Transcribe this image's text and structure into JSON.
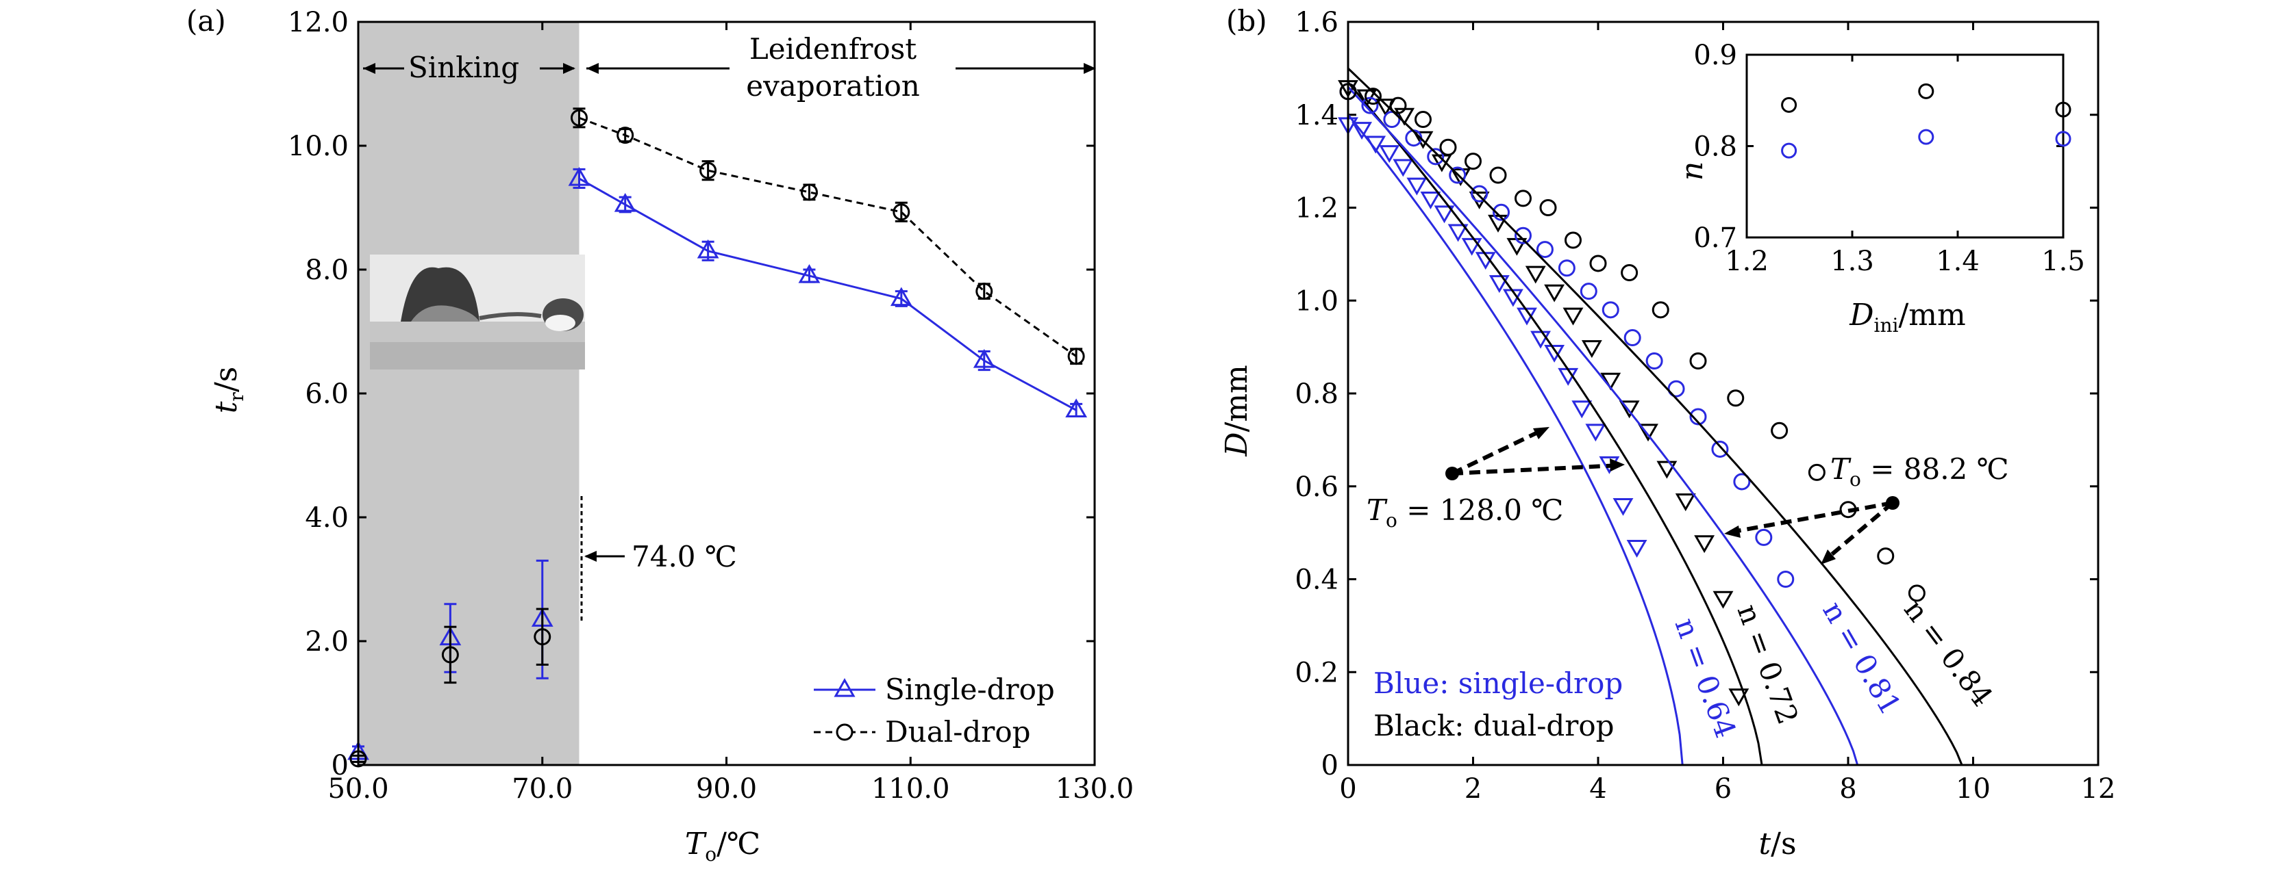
{
  "chart_data": [
    {
      "panel": "(a)",
      "type": "line",
      "xlabel": "T_o/℃",
      "ylabel": "t_r/s",
      "xlim": [
        50,
        130
      ],
      "ylim": [
        0,
        12
      ],
      "xticks": [
        "50.0",
        "70.0",
        "90.0",
        "110.0",
        "130.0"
      ],
      "yticks": [
        "0",
        "2.0",
        "4.0",
        "6.0",
        "8.0",
        "10.0",
        "12.0"
      ],
      "shaded_region": {
        "x": [
          50,
          74
        ],
        "color": "#c8c8c8"
      },
      "region_labels": [
        "Sinking",
        "Leidenfrost",
        "evaporation"
      ],
      "threshold_label": "74.0 ℃",
      "series": [
        {
          "name": "Single-drop",
          "color": "#2a2ae0",
          "marker": "triangle",
          "line": "solid",
          "x": [
            74,
            79,
            88,
            99,
            109,
            118,
            128
          ],
          "y": [
            9.47,
            9.05,
            8.3,
            7.9,
            7.53,
            6.53,
            5.73
          ],
          "err": [
            0.15,
            0.12,
            0.15,
            0.1,
            0.12,
            0.15,
            0.1
          ]
        },
        {
          "name": "Dual-drop",
          "color": "#000000",
          "marker": "circle",
          "line": "dashed",
          "x": [
            74,
            79,
            88,
            99,
            109,
            118,
            128
          ],
          "y": [
            10.45,
            10.17,
            9.6,
            9.25,
            8.93,
            7.65,
            6.6
          ],
          "err": [
            0.15,
            0.1,
            0.15,
            0.12,
            0.15,
            0.12,
            0.12
          ]
        }
      ],
      "sinking_points": [
        {
          "series": "Single-drop",
          "x": [
            50,
            60,
            70
          ],
          "y": [
            0.2,
            2.05,
            2.35
          ],
          "err": [
            0.1,
            0.55,
            0.95
          ]
        },
        {
          "series": "Dual-drop",
          "x": [
            50,
            60,
            70
          ],
          "y": [
            0.1,
            1.78,
            2.07
          ],
          "err": [
            0.05,
            0.45,
            0.45
          ]
        }
      ],
      "legend_position": "bottom-right"
    },
    {
      "panel": "(b)",
      "type": "scatter",
      "xlabel": "t/s",
      "ylabel": "D/mm",
      "xlim": [
        0,
        12
      ],
      "ylim": [
        0,
        1.6
      ],
      "xticks": [
        "0",
        "2",
        "4",
        "6",
        "8",
        "10",
        "12"
      ],
      "yticks": [
        "0",
        "0.2",
        "0.4",
        "0.6",
        "0.8",
        "1.0",
        "1.2",
        "1.4",
        "1.6"
      ],
      "annotations": [
        "T_o = 128.0 ℃",
        "T_o = 88.2 ℃",
        "Blue: single-drop",
        "Black: dual-drop"
      ],
      "series": [
        {
          "n_label": "n = 0.64",
          "color": "#2a2ae0",
          "marker": "triangle",
          "fit": {
            "D0": 1.4,
            "tend": 5.35,
            "n": 0.64
          },
          "x": [
            0.0,
            0.22,
            0.44,
            0.66,
            0.88,
            1.1,
            1.32,
            1.54,
            1.76,
            1.98,
            2.2,
            2.42,
            2.64,
            2.86,
            3.08,
            3.3,
            3.52,
            3.74,
            3.96,
            4.18,
            4.4,
            4.62
          ],
          "y": [
            1.38,
            1.37,
            1.34,
            1.32,
            1.29,
            1.25,
            1.22,
            1.19,
            1.15,
            1.12,
            1.09,
            1.04,
            1.01,
            0.97,
            0.92,
            0.89,
            0.84,
            0.77,
            0.72,
            0.65,
            0.56,
            0.47
          ]
        },
        {
          "n_label": "n = 0.72",
          "color": "#000000",
          "marker": "triangle",
          "fit": {
            "D0": 1.47,
            "tend": 6.62,
            "n": 0.72
          },
          "x": [
            0.0,
            0.3,
            0.6,
            0.9,
            1.2,
            1.5,
            1.8,
            2.1,
            2.4,
            2.7,
            3.0,
            3.3,
            3.6,
            3.9,
            4.2,
            4.5,
            4.8,
            5.1,
            5.4,
            5.7,
            6.0,
            6.25
          ],
          "y": [
            1.46,
            1.44,
            1.42,
            1.4,
            1.35,
            1.3,
            1.27,
            1.22,
            1.17,
            1.12,
            1.06,
            1.02,
            0.97,
            0.9,
            0.83,
            0.77,
            0.72,
            0.64,
            0.57,
            0.48,
            0.36,
            0.15
          ]
        },
        {
          "n_label": "n = 0.81",
          "color": "#2a2ae0",
          "marker": "circle",
          "fit": {
            "D0": 1.46,
            "tend": 8.15,
            "n": 0.81
          },
          "x": [
            0.0,
            0.35,
            0.7,
            1.05,
            1.4,
            1.75,
            2.1,
            2.45,
            2.8,
            3.15,
            3.5,
            3.85,
            4.2,
            4.55,
            4.9,
            5.25,
            5.6,
            5.95,
            6.3,
            6.65,
            7.0
          ],
          "y": [
            1.45,
            1.42,
            1.39,
            1.35,
            1.31,
            1.27,
            1.23,
            1.19,
            1.14,
            1.11,
            1.07,
            1.02,
            0.98,
            0.92,
            0.87,
            0.81,
            0.75,
            0.68,
            0.61,
            0.49,
            0.4
          ]
        },
        {
          "n_label": "n = 0.84",
          "color": "#000000",
          "marker": "circle",
          "fit": {
            "D0": 1.5,
            "tend": 9.82,
            "n": 0.84
          },
          "x": [
            0.0,
            0.4,
            0.8,
            1.2,
            1.6,
            2.0,
            2.4,
            2.8,
            3.2,
            3.6,
            4.0,
            4.5,
            5.0,
            5.6,
            6.2,
            6.9,
            7.5,
            8.0,
            8.6,
            9.1
          ],
          "y": [
            1.45,
            1.44,
            1.42,
            1.39,
            1.33,
            1.3,
            1.27,
            1.22,
            1.2,
            1.13,
            1.08,
            1.06,
            0.98,
            0.87,
            0.79,
            0.72,
            0.63,
            0.55,
            0.45,
            0.37
          ]
        }
      ],
      "inset": {
        "type": "scatter",
        "xlabel": "D_ini/mm",
        "ylabel": "n",
        "xlim": [
          1.2,
          1.5
        ],
        "ylim": [
          0.7,
          0.9
        ],
        "xticks": [
          "1.2",
          "1.3",
          "1.4",
          "1.5"
        ],
        "yticks": [
          "0.7",
          "0.8",
          "0.9"
        ],
        "series": [
          {
            "color": "#000000",
            "marker": "circle",
            "x": [
              1.24,
              1.37,
              1.5
            ],
            "y": [
              0.845,
              0.86,
              0.84
            ]
          },
          {
            "color": "#2a2ae0",
            "marker": "circle",
            "x": [
              1.24,
              1.37,
              1.5
            ],
            "y": [
              0.795,
              0.81,
              0.808
            ]
          }
        ]
      }
    }
  ]
}
